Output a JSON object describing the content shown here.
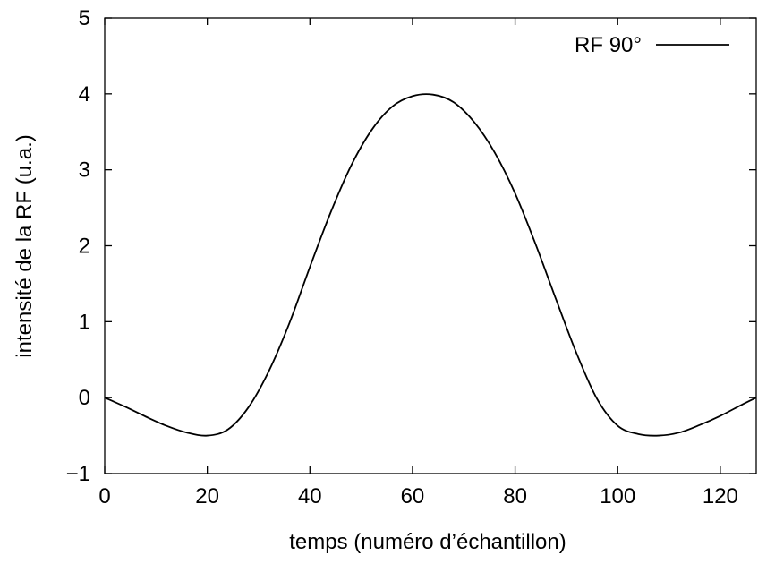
{
  "chart_data": {
    "type": "line",
    "title": "",
    "xlabel": "temps (numéro d’échantillon)",
    "ylabel": "intensité de la RF (u.a.)",
    "xlim": [
      0,
      127
    ],
    "ylim": [
      -1,
      5
    ],
    "xticks": [
      0,
      20,
      40,
      60,
      80,
      100,
      120
    ],
    "yticks": [
      -1,
      0,
      1,
      2,
      3,
      4,
      5
    ],
    "xtick_labels": [
      "0",
      "20",
      "40",
      "60",
      "80",
      "100",
      "120"
    ],
    "ytick_labels": [
      "−1",
      "0",
      "1",
      "2",
      "3",
      "4",
      "5"
    ],
    "grid": false,
    "legend_position": "top-right",
    "line_color": "#000000",
    "series": [
      {
        "name": "RF 90°",
        "x": [
          0,
          4,
          8,
          12,
          16,
          20,
          24,
          28,
          32,
          36,
          40,
          44,
          48,
          52,
          56,
          60,
          64,
          68,
          72,
          76,
          80,
          84,
          88,
          92,
          96,
          100,
          104,
          108,
          112,
          116,
          120,
          124,
          127
        ],
        "values": [
          0.0,
          -0.12,
          -0.25,
          -0.37,
          -0.46,
          -0.5,
          -0.42,
          -0.13,
          0.35,
          0.98,
          1.72,
          2.43,
          3.05,
          3.52,
          3.83,
          3.97,
          3.99,
          3.89,
          3.63,
          3.23,
          2.69,
          2.02,
          1.29,
          0.58,
          -0.02,
          -0.37,
          -0.48,
          -0.5,
          -0.46,
          -0.36,
          -0.24,
          -0.1,
          0.0
        ]
      }
    ]
  }
}
